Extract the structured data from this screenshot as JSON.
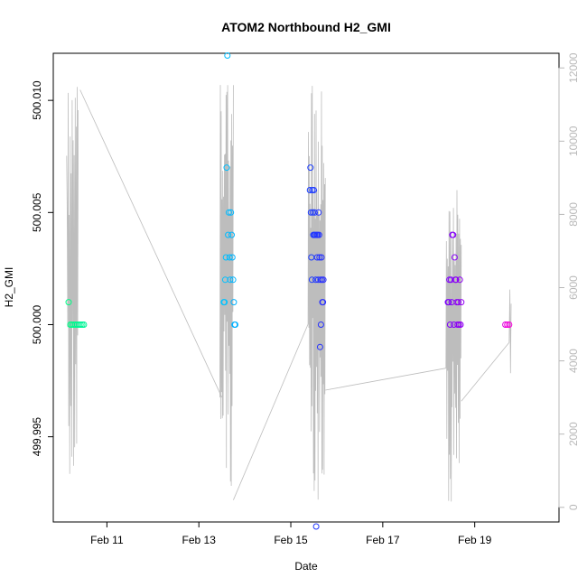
{
  "chart_data": {
    "type": "scatter",
    "title": "ATOM2 Northbound H2_GMI",
    "xlabel": "Date",
    "ylabel": "H2_GMI",
    "x_axis": {
      "type": "date",
      "range": [
        "2020-02-09T20:00",
        "2020-02-20T20:00"
      ],
      "ticks": [
        {
          "value": "2020-02-11T00:00",
          "label": "Feb 11"
        },
        {
          "value": "2020-02-13T00:00",
          "label": "Feb 13"
        },
        {
          "value": "2020-02-15T00:00",
          "label": "Feb 15"
        },
        {
          "value": "2020-02-17T00:00",
          "label": "Feb 17"
        },
        {
          "value": "2020-02-19T00:00",
          "label": "Feb 19"
        }
      ]
    },
    "y_axis_left": {
      "range": [
        499.9912,
        500.0121
      ],
      "ticks": [
        {
          "value": 499.995,
          "label": "499.995"
        },
        {
          "value": 500.0,
          "label": "500.000"
        },
        {
          "value": 500.005,
          "label": "500.005"
        },
        {
          "value": 500.01,
          "label": "500.010"
        }
      ]
    },
    "y_axis_right": {
      "color": "#b8b8b8",
      "range": [
        -400,
        12400
      ],
      "ticks": [
        {
          "value": 0,
          "label": "0"
        },
        {
          "value": 2000,
          "label": "2000"
        },
        {
          "value": 4000,
          "label": "4000"
        },
        {
          "value": 6000,
          "label": "6000"
        },
        {
          "value": 8000,
          "label": "8000"
        },
        {
          "value": 10000,
          "label": "10000"
        },
        {
          "value": 12000,
          "label": "12000"
        }
      ]
    },
    "grid": false,
    "legend": "none",
    "point_color_scale": [
      "#00ff80",
      "#00c8ff",
      "#0050ff",
      "#6a00ff",
      "#ff00d8"
    ],
    "line_color": "#bdbdbd",
    "scatter_groups": [
      {
        "t0": "2020-02-10T04:00",
        "t1": "2020-02-10T12:00",
        "color_pos": 0.03,
        "y": [
          500.001,
          500.0,
          500.0,
          500.0,
          500.0,
          500.0,
          500.0,
          500.0,
          500.0,
          500.0
        ]
      },
      {
        "t0": "2020-02-13T13:00",
        "t1": "2020-02-13T19:00",
        "color_pos": 0.28,
        "y": [
          500.001,
          500.001,
          500.002,
          500.003,
          500.007,
          500.012,
          500.004,
          500.005,
          500.003,
          500.002,
          500.005,
          500.004,
          500.003,
          500.002,
          500.001,
          500.0,
          500.0
        ]
      },
      {
        "t0": "2020-02-15T10:00",
        "t1": "2020-02-15T17:00",
        "color_pos": 0.58,
        "y": [
          500.006,
          500.007,
          500.005,
          500.003,
          500.002,
          500.006,
          500.005,
          500.004,
          500.006,
          500.004,
          500.005,
          500.004,
          500.002,
          499.991,
          500.004,
          500.003,
          500.004,
          500.002,
          500.005,
          500.004,
          500.003,
          499.999,
          500.002,
          500.0,
          500.003,
          500.002,
          500.001,
          500.001,
          500.002
        ]
      },
      {
        "t0": "2020-02-18T10:00",
        "t1": "2020-02-18T17:00",
        "color_pos": 0.8,
        "y": [
          500.001,
          500.001,
          500.002,
          500.0,
          500.002,
          500.001,
          500.004,
          500.004,
          500.0,
          500.003,
          500.002,
          500.002,
          500.001,
          500.0,
          500.001,
          500.0,
          500.002,
          500.0,
          500.001
        ]
      },
      {
        "t0": "2020-02-19T16:00",
        "t1": "2020-02-19T18:00",
        "color_pos": 0.97,
        "y": [
          500.0,
          500.0,
          500.0
        ]
      }
    ],
    "line_series": {
      "axis": "right",
      "segments": [
        {
          "t0": "2020-02-10T03:00",
          "t1": "2020-02-10T09:00",
          "n": 24,
          "lo": 200,
          "hi": 11600,
          "start": 9600
        },
        {
          "t0": "2020-02-13T11:00",
          "t1": "2020-02-13T18:00",
          "n": 34,
          "lo": 150,
          "hi": 12000,
          "start": 3000
        },
        {
          "t0": "2020-02-15T09:00",
          "t1": "2020-02-15T18:00",
          "n": 46,
          "lo": 100,
          "hi": 11600,
          "start": 5000
        },
        {
          "t0": "2020-02-18T09:00",
          "t1": "2020-02-18T17:00",
          "n": 36,
          "lo": 150,
          "hi": 9000,
          "start": 3800
        },
        {
          "t0": "2020-02-19T18:00",
          "t1": "2020-02-19T19:00",
          "n": 4,
          "lo": 500,
          "hi": 8000,
          "start": 4500
        }
      ],
      "connectors": [
        {
          "from": [
            "2020-02-10T10:00",
            11400
          ],
          "to": [
            "2020-02-13T12:00",
            3000
          ]
        },
        {
          "from": [
            "2020-02-13T18:00",
            200
          ],
          "to": [
            "2020-02-15T09:00",
            5000
          ]
        },
        {
          "from": [
            "2020-02-15T18:00",
            3200
          ],
          "to": [
            "2020-02-18T09:00",
            3800
          ]
        },
        {
          "from": [
            "2020-02-18T17:00",
            2900
          ],
          "to": [
            "2020-02-19T18:00",
            4500
          ]
        }
      ]
    }
  }
}
